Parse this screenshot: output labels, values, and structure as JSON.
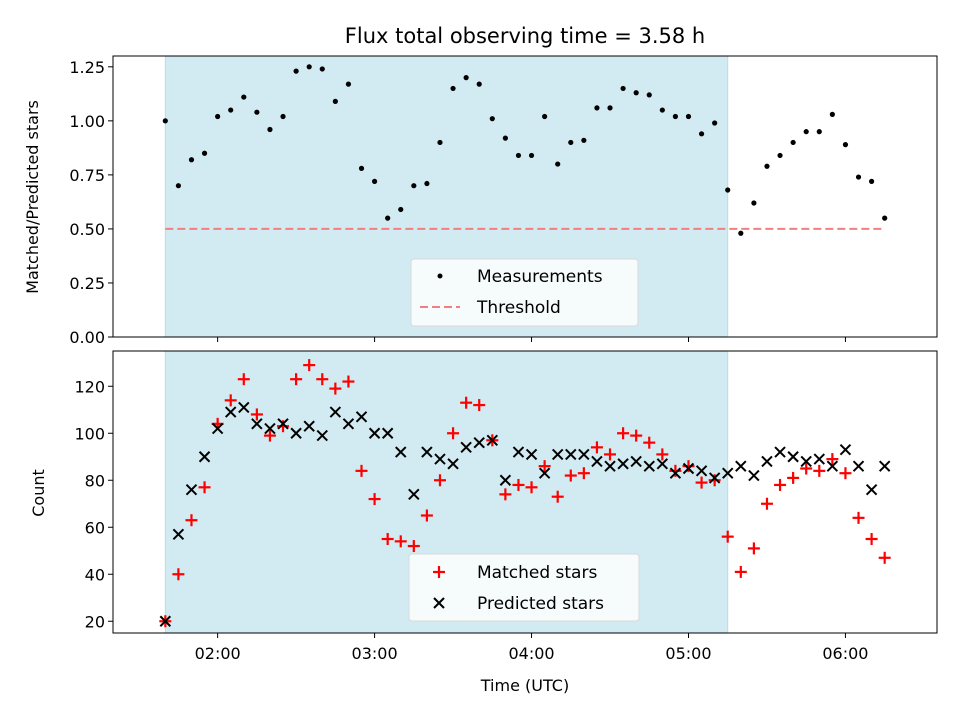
{
  "title": "Flux total observing time = 3.58 h",
  "chart_data": [
    {
      "type": "scatter",
      "panel": "top",
      "ylabel": "Matched/Predicted stars",
      "ylim": [
        0,
        1.3
      ],
      "yticks": [
        0.0,
        0.25,
        0.5,
        0.75,
        1.0,
        1.25
      ],
      "ytick_labels": [
        "0.00",
        "0.25",
        "0.50",
        "0.75",
        "1.00",
        "1.25"
      ],
      "legend_placement": "lower-center",
      "shaded_interval": [
        "01:40",
        "05:15"
      ],
      "threshold": 0.5,
      "series": [
        {
          "name": "Measurements",
          "color": "#000000",
          "x": [
            "01:40",
            "01:45",
            "01:50",
            "01:55",
            "02:00",
            "02:05",
            "02:10",
            "02:15",
            "02:20",
            "02:25",
            "02:30",
            "02:35",
            "02:40",
            "02:45",
            "02:50",
            "02:55",
            "03:00",
            "03:05",
            "03:10",
            "03:15",
            "03:20",
            "03:25",
            "03:30",
            "03:35",
            "03:40",
            "03:45",
            "03:50",
            "03:55",
            "04:00",
            "04:05",
            "04:10",
            "04:15",
            "04:20",
            "04:25",
            "04:30",
            "04:35",
            "04:40",
            "04:45",
            "04:50",
            "04:55",
            "05:00",
            "05:05",
            "05:10",
            "05:15",
            "05:20",
            "05:25",
            "05:30",
            "05:35",
            "05:40",
            "05:45",
            "05:50",
            "05:55",
            "06:00",
            "06:05",
            "06:10",
            "06:15"
          ],
          "y": [
            1.0,
            0.7,
            0.82,
            0.85,
            1.02,
            1.05,
            1.11,
            1.04,
            0.96,
            1.02,
            1.23,
            1.25,
            1.24,
            1.09,
            1.17,
            0.78,
            0.72,
            0.55,
            0.59,
            0.7,
            0.71,
            0.9,
            1.15,
            1.2,
            1.17,
            1.01,
            0.92,
            0.84,
            0.84,
            1.02,
            0.8,
            0.9,
            0.91,
            1.06,
            1.06,
            1.15,
            1.13,
            1.12,
            1.05,
            1.02,
            1.02,
            0.94,
            0.99,
            0.68,
            0.48,
            0.62,
            0.79,
            0.84,
            0.9,
            0.95,
            0.95,
            1.03,
            0.89,
            0.74,
            0.72,
            0.55
          ]
        },
        {
          "name": "Threshold",
          "color": "#f08080",
          "style": "dashed",
          "x": [
            "01:40",
            "06:15"
          ],
          "y": [
            0.5,
            0.5
          ]
        }
      ]
    },
    {
      "type": "scatter",
      "panel": "bottom",
      "xlabel": "Time (UTC)",
      "ylabel": "Count",
      "ylim": [
        15,
        135
      ],
      "yticks": [
        20,
        40,
        60,
        80,
        100,
        120
      ],
      "ytick_labels": [
        "20",
        "40",
        "60",
        "80",
        "100",
        "120"
      ],
      "xticks": [
        "02:00",
        "03:00",
        "04:00",
        "05:00",
        "06:00"
      ],
      "legend_placement": "lower-center",
      "shaded_interval": [
        "01:40",
        "05:15"
      ],
      "series": [
        {
          "name": "Matched stars",
          "color": "#ff0000",
          "marker": "plus",
          "x": [
            "01:40",
            "01:45",
            "01:50",
            "01:55",
            "02:00",
            "02:05",
            "02:10",
            "02:15",
            "02:20",
            "02:25",
            "02:30",
            "02:35",
            "02:40",
            "02:45",
            "02:50",
            "02:55",
            "03:00",
            "03:05",
            "03:10",
            "03:15",
            "03:20",
            "03:25",
            "03:30",
            "03:35",
            "03:40",
            "03:45",
            "03:50",
            "03:55",
            "04:00",
            "04:05",
            "04:10",
            "04:15",
            "04:20",
            "04:25",
            "04:30",
            "04:35",
            "04:40",
            "04:45",
            "04:50",
            "04:55",
            "05:00",
            "05:05",
            "05:10",
            "05:15",
            "05:20",
            "05:25",
            "05:30",
            "05:35",
            "05:40",
            "05:45",
            "05:50",
            "05:55",
            "06:00",
            "06:05",
            "06:10",
            "06:15"
          ],
          "y": [
            20,
            40,
            63,
            77,
            104,
            114,
            123,
            108,
            99,
            103,
            123,
            129,
            123,
            119,
            122,
            84,
            72,
            55,
            54,
            52,
            65,
            80,
            100,
            113,
            112,
            97,
            74,
            78,
            77,
            86,
            73,
            82,
            83,
            94,
            91,
            100,
            99,
            96,
            91,
            84,
            86,
            79,
            80,
            56,
            41,
            51,
            70,
            78,
            81,
            85,
            84,
            89,
            83,
            64,
            55,
            47
          ]
        },
        {
          "name": "Predicted stars",
          "color": "#000000",
          "marker": "cross",
          "x": [
            "01:40",
            "01:45",
            "01:50",
            "01:55",
            "02:00",
            "02:05",
            "02:10",
            "02:15",
            "02:20",
            "02:25",
            "02:30",
            "02:35",
            "02:40",
            "02:45",
            "02:50",
            "02:55",
            "03:00",
            "03:05",
            "03:10",
            "03:15",
            "03:20",
            "03:25",
            "03:30",
            "03:35",
            "03:40",
            "03:45",
            "03:50",
            "03:55",
            "04:00",
            "04:05",
            "04:10",
            "04:15",
            "04:20",
            "04:25",
            "04:30",
            "04:35",
            "04:40",
            "04:45",
            "04:50",
            "04:55",
            "05:00",
            "05:05",
            "05:10",
            "05:15",
            "05:20",
            "05:25",
            "05:30",
            "05:35",
            "05:40",
            "05:45",
            "05:50",
            "05:55",
            "06:00",
            "06:05",
            "06:10",
            "06:15"
          ],
          "y": [
            20,
            57,
            76,
            90,
            102,
            109,
            111,
            104,
            102,
            104,
            100,
            103,
            99,
            109,
            104,
            107,
            100,
            100,
            92,
            74,
            92,
            89,
            87,
            94,
            96,
            97,
            80,
            92,
            91,
            83,
            91,
            91,
            91,
            88,
            86,
            87,
            88,
            86,
            87,
            83,
            85,
            84,
            81,
            83,
            86,
            82,
            88,
            92,
            90,
            88,
            89,
            86,
            93,
            86,
            76,
            86
          ]
        }
      ]
    }
  ]
}
